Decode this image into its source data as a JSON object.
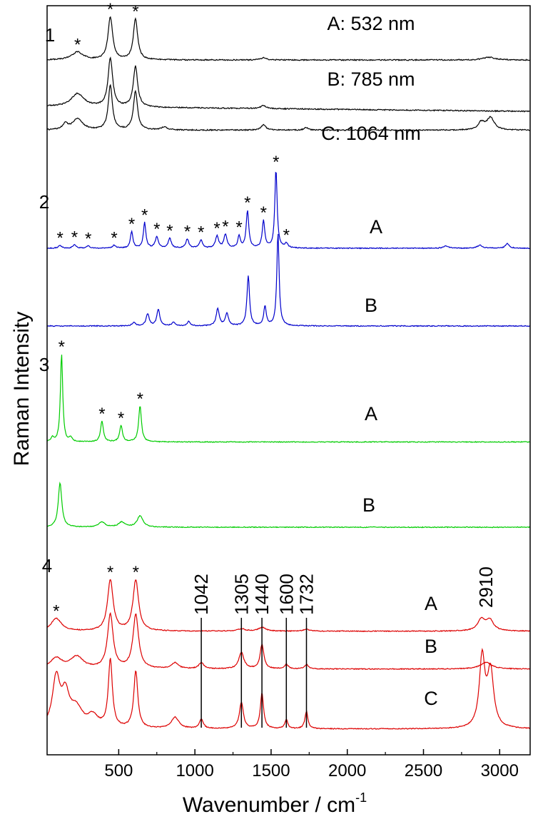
{
  "chart_data": {
    "type": "line",
    "xlabel": "Wavenumber / cm",
    "xlabel_superscript": "-1",
    "ylabel": "Raman Intensity",
    "xlim": [
      30,
      3200
    ],
    "xticks": [
      "500",
      "1000",
      "1500",
      "2000",
      "2500",
      "3000"
    ],
    "xtick_values": [
      500,
      1000,
      1500,
      2000,
      2500,
      3000
    ],
    "y_tick_labels": "none",
    "grid": false,
    "colors": {
      "1": "#000000",
      "2": "#0000cc",
      "3": "#00cc00",
      "4": "#dd0000"
    },
    "panels": [
      {
        "label": "1",
        "color": "#000000",
        "series": [
          {
            "name": "A: 532 nm",
            "base": 0.3,
            "baseline_slope": 0,
            "peaks": [
              [
                230,
                0.85,
                45
              ],
              [
                445,
                4.6,
                18
              ],
              [
                610,
                4.4,
                17
              ],
              [
                1450,
                0.25,
                20
              ],
              [
                2930,
                0.3,
                45
              ]
            ],
            "star_peaks": [
              230,
              445,
              610
            ]
          },
          {
            "name": "B: 785 nm",
            "base": 0.3,
            "baseline_slope": -0.00017,
            "peaks": [
              [
                230,
                1.4,
                50
              ],
              [
                445,
                5.2,
                18
              ],
              [
                610,
                4.4,
                17
              ],
              [
                1450,
                0.35,
                20
              ]
            ]
          },
          {
            "name": "C: 1064 nm",
            "base": 0.2,
            "baseline_slope": 0,
            "peaks": [
              [
                150,
                0.6,
                20
              ],
              [
                230,
                1.2,
                40
              ],
              [
                445,
                4.8,
                16
              ],
              [
                610,
                4.2,
                16
              ],
              [
                800,
                0.3,
                25
              ],
              [
                1450,
                0.6,
                18
              ],
              [
                1730,
                0.3,
                15
              ],
              [
                2880,
                0.8,
                25
              ],
              [
                2940,
                1.3,
                30
              ]
            ]
          }
        ]
      },
      {
        "label": "2",
        "color": "#0000cc",
        "series": [
          {
            "name": "A",
            "base": 0.0,
            "baseline_slope": 0,
            "peaks": [
              [
                115,
                0.4,
                12
              ],
              [
                210,
                0.5,
                12
              ],
              [
                300,
                0.3,
                12
              ],
              [
                470,
                0.4,
                12
              ],
              [
                585,
                2.2,
                10
              ],
              [
                670,
                3.4,
                10
              ],
              [
                750,
                1.5,
                12
              ],
              [
                835,
                1.3,
                12
              ],
              [
                950,
                1.2,
                12
              ],
              [
                1040,
                1.1,
                12
              ],
              [
                1145,
                1.6,
                12
              ],
              [
                1200,
                1.8,
                12
              ],
              [
                1290,
                1.6,
                10
              ],
              [
                1345,
                5.0,
                10
              ],
              [
                1450,
                3.6,
                10
              ],
              [
                1532,
                10.5,
                9
              ],
              [
                1600,
                0.6,
                12
              ],
              [
                2650,
                0.3,
                20
              ],
              [
                2870,
                0.4,
                20
              ],
              [
                3050,
                0.6,
                15
              ]
            ],
            "star_peaks": [
              115,
              210,
              300,
              470,
              585,
              670,
              750,
              835,
              950,
              1040,
              1145,
              1200,
              1290,
              1345,
              1450,
              1532,
              1600
            ]
          },
          {
            "name": "B",
            "base": 0.1,
            "baseline_slope": 0,
            "peaks": [
              [
                600,
                0.5,
                12
              ],
              [
                690,
                1.6,
                12
              ],
              [
                760,
                2.2,
                12
              ],
              [
                860,
                0.5,
                12
              ],
              [
                960,
                0.6,
                12
              ],
              [
                1150,
                2.3,
                12
              ],
              [
                1210,
                1.7,
                12
              ],
              [
                1350,
                6.7,
                10
              ],
              [
                1460,
                2.6,
                10
              ],
              [
                1545,
                12.4,
                9
              ]
            ]
          }
        ]
      },
      {
        "label": "3",
        "color": "#00cc00",
        "series": [
          {
            "name": "A",
            "base": 0.05,
            "baseline_slope": 0,
            "peaks": [
              [
                65,
                0.6,
                10
              ],
              [
                125,
                12.3,
                9
              ],
              [
                185,
                0.6,
                10
              ],
              [
                390,
                2.9,
                11
              ],
              [
                515,
                2.3,
                11
              ],
              [
                640,
                5.0,
                11
              ]
            ],
            "star_peaks": [
              125,
              390,
              515,
              640
            ]
          },
          {
            "name": "B",
            "base": 0.1,
            "baseline_slope": 0,
            "peaks": [
              [
                115,
                6.2,
                14
              ],
              [
                390,
                0.7,
                25
              ],
              [
                520,
                0.7,
                25
              ],
              [
                640,
                1.6,
                22
              ]
            ]
          }
        ]
      },
      {
        "label": "4",
        "color": "#dd0000",
        "series": [
          {
            "name": "A",
            "base": 0.5,
            "baseline_slope": 0,
            "peaks": [
              [
                90,
                1.7,
                40
              ],
              [
                445,
                6.8,
                22
              ],
              [
                612,
                6.8,
                22
              ],
              [
                1305,
                0.3,
                30
              ],
              [
                1440,
                0.5,
                30
              ],
              [
                1732,
                0.3,
                20
              ],
              [
                2880,
                1.5,
                30
              ],
              [
                2935,
                1.4,
                30
              ]
            ],
            "star_peaks": [
              90,
              445,
              612
            ]
          },
          {
            "name": "B",
            "base": 0.4,
            "baseline_slope": 0,
            "peaks": [
              [
                90,
                1.4,
                45
              ],
              [
                225,
                1.6,
                50
              ],
              [
                445,
                7.2,
                22
              ],
              [
                612,
                7.2,
                22
              ],
              [
                870,
                0.8,
                25
              ],
              [
                1042,
                0.8,
                20
              ],
              [
                1305,
                2.2,
                20
              ],
              [
                1440,
                3.2,
                15
              ],
              [
                1600,
                0.6,
                15
              ],
              [
                1732,
                0.6,
                15
              ],
              [
                2910,
                0.9,
                45
              ]
            ]
          },
          {
            "name": "C",
            "base": 0.4,
            "baseline_slope": 0,
            "peaks": [
              [
                90,
                6.5,
                30
              ],
              [
                150,
                4.0,
                30
              ],
              [
                220,
                2.5,
                50
              ],
              [
                330,
                1.5,
                40
              ],
              [
                445,
                9.0,
                16
              ],
              [
                612,
                7.6,
                16
              ],
              [
                870,
                1.5,
                30
              ],
              [
                1042,
                1.3,
                15
              ],
              [
                1305,
                3.5,
                16
              ],
              [
                1440,
                4.7,
                13
              ],
              [
                1600,
                1.2,
                12
              ],
              [
                1732,
                2.3,
                12
              ],
              [
                2885,
                9.3,
                22
              ],
              [
                2940,
                7.5,
                25
              ]
            ]
          }
        ],
        "annotations": [
          "1042",
          "1305",
          "1440",
          "1600",
          "1732",
          "2910"
        ],
        "annotation_positions": [
          1042,
          1305,
          1440,
          1600,
          1732,
          2910
        ]
      }
    ]
  }
}
